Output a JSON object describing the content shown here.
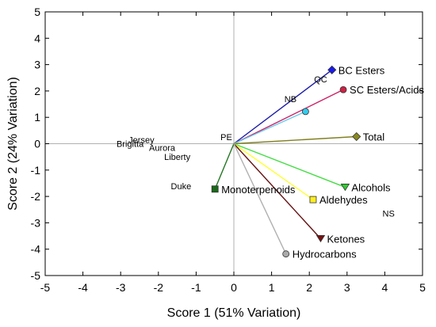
{
  "chart_data": {
    "type": "scatter",
    "subtype": "biplot",
    "xlabel": "Score 1 (51% Variation)",
    "ylabel": "Score 2 (24% Variation)",
    "xlim": [
      -5,
      5
    ],
    "ylim": [
      -5,
      5
    ],
    "xticks": [
      -5,
      -4,
      -3,
      -2,
      -1,
      0,
      1,
      2,
      3,
      4,
      5
    ],
    "yticks": [
      -5,
      -4,
      -3,
      -2,
      -1,
      0,
      1,
      2,
      3,
      4,
      5
    ],
    "grid": false,
    "origin_lines": true,
    "vectors": [
      {
        "name": "BC Esters",
        "x": 2.6,
        "y": 2.8,
        "color": "#1a1aa8",
        "marker": "diamond",
        "marker_color": "#1a1aee"
      },
      {
        "name": "SC Esters/Acids",
        "x": 2.9,
        "y": 2.05,
        "color": "#cc2266",
        "marker": "circle",
        "marker_color": "#cc2244"
      },
      {
        "name": "",
        "x": 1.9,
        "y": 1.22,
        "color": "#66ccee",
        "marker": "circle",
        "marker_color": "#33ccee"
      },
      {
        "name": "Total",
        "x": 3.25,
        "y": 0.27,
        "color": "#808020",
        "marker": "diamond",
        "marker_color": "#8a8a20"
      },
      {
        "name": "Alcohols",
        "x": 2.95,
        "y": -1.65,
        "color": "#44dd44",
        "marker": "triangle-down",
        "marker_color": "#33cc33"
      },
      {
        "name": "Aldehydes",
        "x": 2.1,
        "y": -2.12,
        "color": "#ffff33",
        "marker": "square",
        "marker_color": "#ffee22"
      },
      {
        "name": "Monoterpenoids",
        "x": -0.5,
        "y": -1.72,
        "color": "#227722",
        "marker": "square",
        "marker_color": "#1a6a1a"
      },
      {
        "name": "Ketones",
        "x": 2.3,
        "y": -3.6,
        "color": "#661111",
        "marker": "triangle-down",
        "marker_color": "#771111"
      },
      {
        "name": "Hydrocarbons",
        "x": 1.38,
        "y": -4.18,
        "color": "#b0b0b0",
        "marker": "circle",
        "marker_color": "#aaaaaa"
      }
    ],
    "observations": [
      {
        "label": "QC",
        "x": 2.3,
        "y": 2.45
      },
      {
        "label": "NB",
        "x": 1.5,
        "y": 1.7
      },
      {
        "label": "PE",
        "x": -0.2,
        "y": 0.25
      },
      {
        "label": "Jersey",
        "x": -2.45,
        "y": 0.15
      },
      {
        "label": "Brigitta",
        "x": -2.75,
        "y": 0.0
      },
      {
        "label": "Aurora",
        "x": -1.9,
        "y": -0.15
      },
      {
        "label": "Liberty",
        "x": -1.5,
        "y": -0.5
      },
      {
        "label": "Duke",
        "x": -1.4,
        "y": -1.6
      },
      {
        "label": "NS",
        "x": 4.1,
        "y": -2.65
      }
    ]
  }
}
